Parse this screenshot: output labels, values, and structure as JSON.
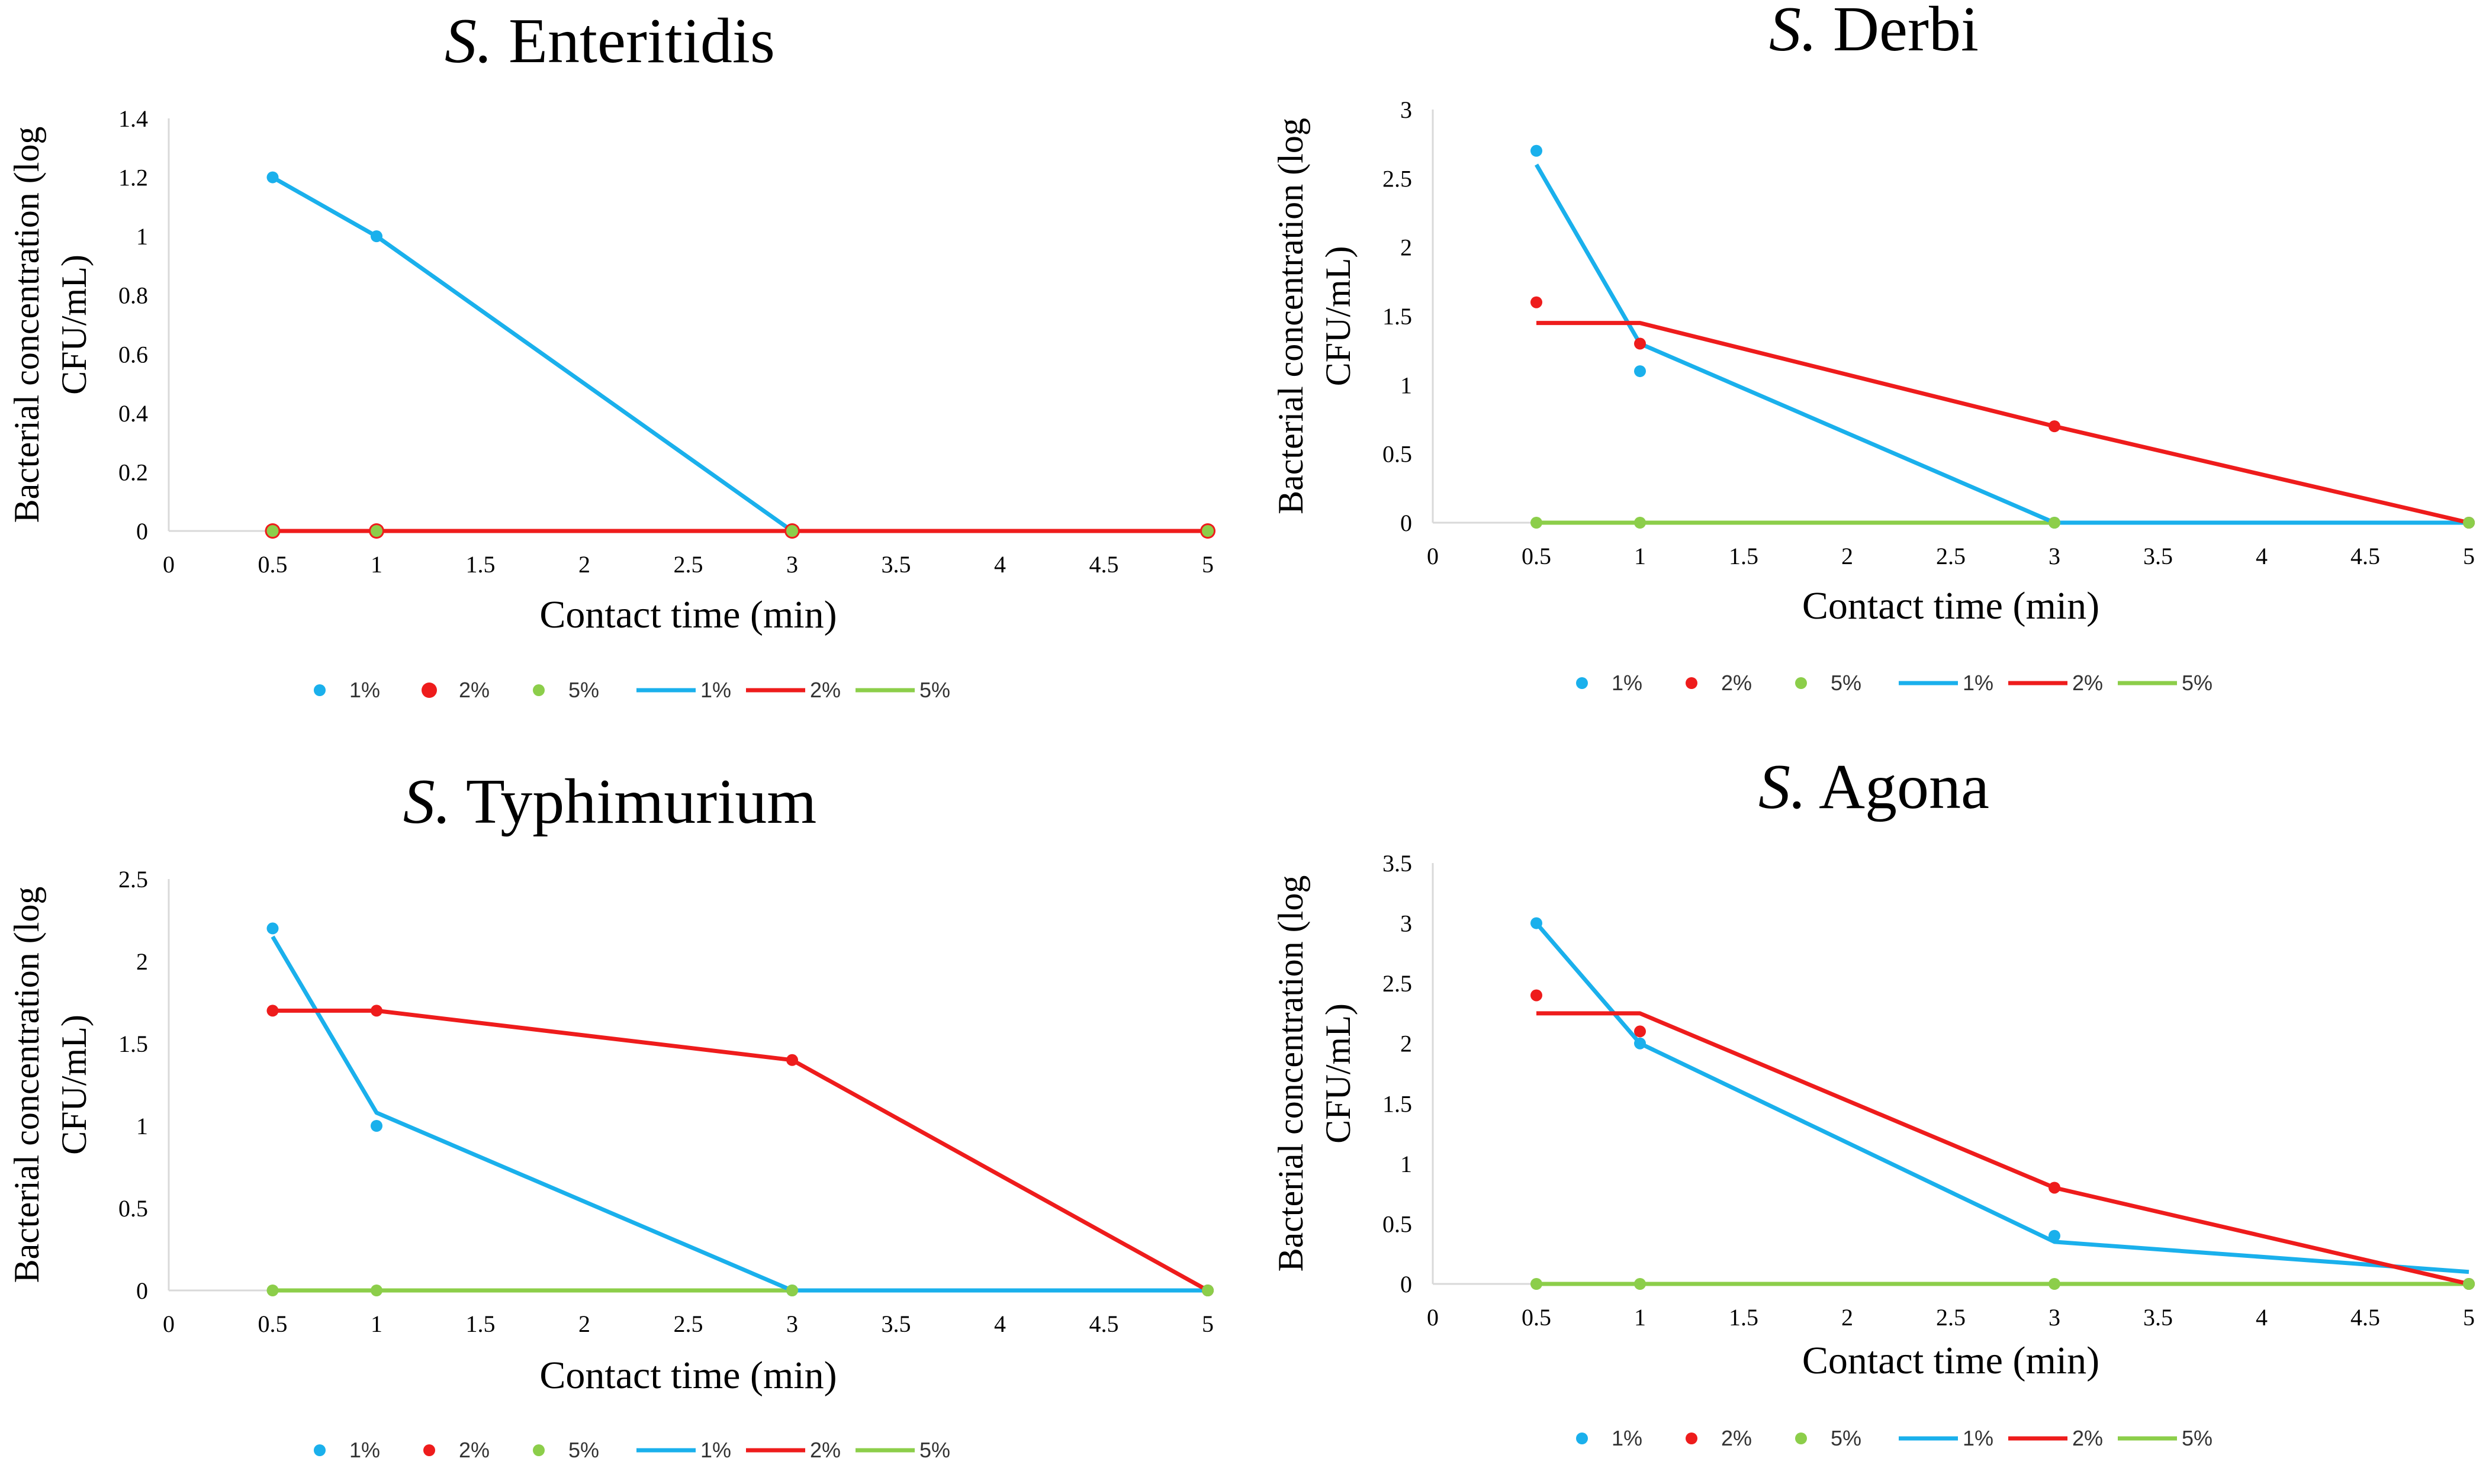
{
  "colors": {
    "s1": "#1ab0ec",
    "s2": "#ee1c1c",
    "s3": "#8cce4a",
    "axis": "#d9d9d9",
    "text": "#000000"
  },
  "chart_data": [
    {
      "type": "scatter+line",
      "title_prefix": "S.",
      "title_rest": "Enteritidis",
      "xlabel": "Contact time (min)",
      "ylabel_line1": "Bacterial concentration (log",
      "ylabel_line2": "CFU/mL)",
      "xlim": [
        0,
        5
      ],
      "ylim": [
        0,
        1.4
      ],
      "x_ticks": [
        "0",
        "0.5",
        "1",
        "1.5",
        "2",
        "2.5",
        "3",
        "3.5",
        "4",
        "4.5",
        "5"
      ],
      "y_ticks": [
        "0",
        "0.2",
        "0.4",
        "0.6",
        "0.8",
        "1",
        "1.2",
        "1.4"
      ],
      "points": [
        {
          "name": "1%",
          "x": [
            0.5,
            1,
            3,
            5
          ],
          "y": [
            1.2,
            1.0,
            0,
            0
          ]
        },
        {
          "name": "2%",
          "x": [
            0.5,
            1,
            3,
            5
          ],
          "y": [
            0,
            0,
            0,
            0
          ]
        },
        {
          "name": "5%",
          "x": [
            0.5,
            1,
            3,
            5
          ],
          "y": [
            0,
            0,
            0,
            0
          ]
        }
      ],
      "lines": [
        {
          "name": "1%",
          "x": [
            0.5,
            1,
            3,
            5
          ],
          "y": [
            1.2,
            1.0,
            0,
            0
          ]
        },
        {
          "name": "2%",
          "x": [
            0.5,
            1,
            3,
            5
          ],
          "y": [
            0,
            0,
            0,
            0
          ]
        },
        {
          "name": "5%",
          "x": [
            0.5,
            1,
            3,
            5
          ],
          "y": [
            0,
            0,
            0,
            0
          ]
        }
      ],
      "legend": [
        "1%",
        "2%",
        "5%",
        "1%",
        "2%",
        "5%"
      ]
    },
    {
      "type": "scatter+line",
      "title_prefix": "S.",
      "title_rest": "Derbi",
      "xlabel": "Contact time (min)",
      "ylabel_line1": "Bacterial concentration (log",
      "ylabel_line2": "CFU/mL)",
      "xlim": [
        0,
        5
      ],
      "ylim": [
        0,
        3
      ],
      "x_ticks": [
        "0",
        "0.5",
        "1",
        "1.5",
        "2",
        "2.5",
        "3",
        "3.5",
        "4",
        "4.5",
        "5"
      ],
      "y_ticks": [
        "0",
        "0.5",
        "1",
        "1.5",
        "2",
        "2.5",
        "3"
      ],
      "points": [
        {
          "name": "1%",
          "x": [
            0.5,
            1,
            3,
            5
          ],
          "y": [
            2.7,
            1.1,
            0,
            0
          ]
        },
        {
          "name": "2%",
          "x": [
            0.5,
            1,
            3,
            5
          ],
          "y": [
            1.6,
            1.3,
            0.7,
            0
          ]
        },
        {
          "name": "5%",
          "x": [
            0.5,
            1,
            3,
            5
          ],
          "y": [
            0,
            0,
            0,
            0
          ]
        }
      ],
      "lines": [
        {
          "name": "1%",
          "x": [
            0.5,
            1,
            3,
            5
          ],
          "y": [
            2.6,
            1.3,
            0,
            0
          ]
        },
        {
          "name": "2%",
          "x": [
            0.5,
            1,
            3,
            5
          ],
          "y": [
            1.45,
            1.45,
            0.7,
            0
          ]
        },
        {
          "name": "5%",
          "x": [
            0.5,
            1,
            3,
            5
          ],
          "y": [
            0,
            0,
            0,
            0
          ]
        }
      ],
      "legend": [
        "1%",
        "2%",
        "5%",
        "1%",
        "2%",
        "5%"
      ]
    },
    {
      "type": "scatter+line",
      "title_prefix": "S.",
      "title_rest": "Typhimurium",
      "xlabel": "Contact time (min)",
      "ylabel_line1": "Bacterial concentration (log",
      "ylabel_line2": "CFU/mL)",
      "xlim": [
        0,
        5
      ],
      "ylim": [
        0,
        2.5
      ],
      "x_ticks": [
        "0",
        "0.5",
        "1",
        "1.5",
        "2",
        "2.5",
        "3",
        "3.5",
        "4",
        "4.5",
        "5"
      ],
      "y_ticks": [
        "0",
        "0.5",
        "1",
        "1.5",
        "2",
        "2.5"
      ],
      "points": [
        {
          "name": "1%",
          "x": [
            0.5,
            1,
            3,
            5
          ],
          "y": [
            2.2,
            1.0,
            0,
            0
          ]
        },
        {
          "name": "2%",
          "x": [
            0.5,
            1,
            3,
            5
          ],
          "y": [
            1.7,
            1.7,
            1.4,
            0
          ]
        },
        {
          "name": "5%",
          "x": [
            0.5,
            1,
            3,
            5
          ],
          "y": [
            0,
            0,
            0,
            0
          ]
        }
      ],
      "lines": [
        {
          "name": "1%",
          "x": [
            0.5,
            1,
            3,
            5
          ],
          "y": [
            2.15,
            1.08,
            0,
            0
          ]
        },
        {
          "name": "2%",
          "x": [
            0.5,
            1,
            3,
            5
          ],
          "y": [
            1.7,
            1.7,
            1.4,
            0
          ]
        },
        {
          "name": "5%",
          "x": [
            0.5,
            1,
            3,
            5
          ],
          "y": [
            0,
            0,
            0,
            0
          ]
        }
      ],
      "legend": [
        "1%",
        "2%",
        "5%",
        "1%",
        "2%",
        "5%"
      ]
    },
    {
      "type": "scatter+line",
      "title_prefix": "S.",
      "title_rest": "Agona",
      "xlabel": "Contact time (min)",
      "ylabel_line1": "Bacterial concentration (log",
      "ylabel_line2": "CFU/mL)",
      "xlim": [
        0,
        5
      ],
      "ylim": [
        0,
        3.5
      ],
      "x_ticks": [
        "0",
        "0.5",
        "1",
        "1.5",
        "2",
        "2.5",
        "3",
        "3.5",
        "4",
        "4.5",
        "5"
      ],
      "y_ticks": [
        "0",
        "0.5",
        "1",
        "1.5",
        "2",
        "2.5",
        "3",
        "3.5"
      ],
      "points": [
        {
          "name": "1%",
          "x": [
            0.5,
            1,
            3,
            5
          ],
          "y": [
            3.0,
            2.0,
            0.4,
            0
          ]
        },
        {
          "name": "2%",
          "x": [
            0.5,
            1,
            3,
            5
          ],
          "y": [
            2.4,
            2.1,
            0.8,
            0
          ]
        },
        {
          "name": "5%",
          "x": [
            0.5,
            1,
            3,
            5
          ],
          "y": [
            0,
            0,
            0,
            0
          ]
        }
      ],
      "lines": [
        {
          "name": "1%",
          "x": [
            0.5,
            1,
            3,
            5
          ],
          "y": [
            3.0,
            2.0,
            0.35,
            0.1
          ]
        },
        {
          "name": "2%",
          "x": [
            0.5,
            1,
            3,
            5
          ],
          "y": [
            2.25,
            2.25,
            0.8,
            0
          ]
        },
        {
          "name": "5%",
          "x": [
            0.5,
            1,
            3,
            5
          ],
          "y": [
            0,
            0,
            0,
            0
          ]
        }
      ],
      "legend": [
        "1%",
        "2%",
        "5%",
        "1%",
        "2%",
        "5%"
      ]
    }
  ]
}
